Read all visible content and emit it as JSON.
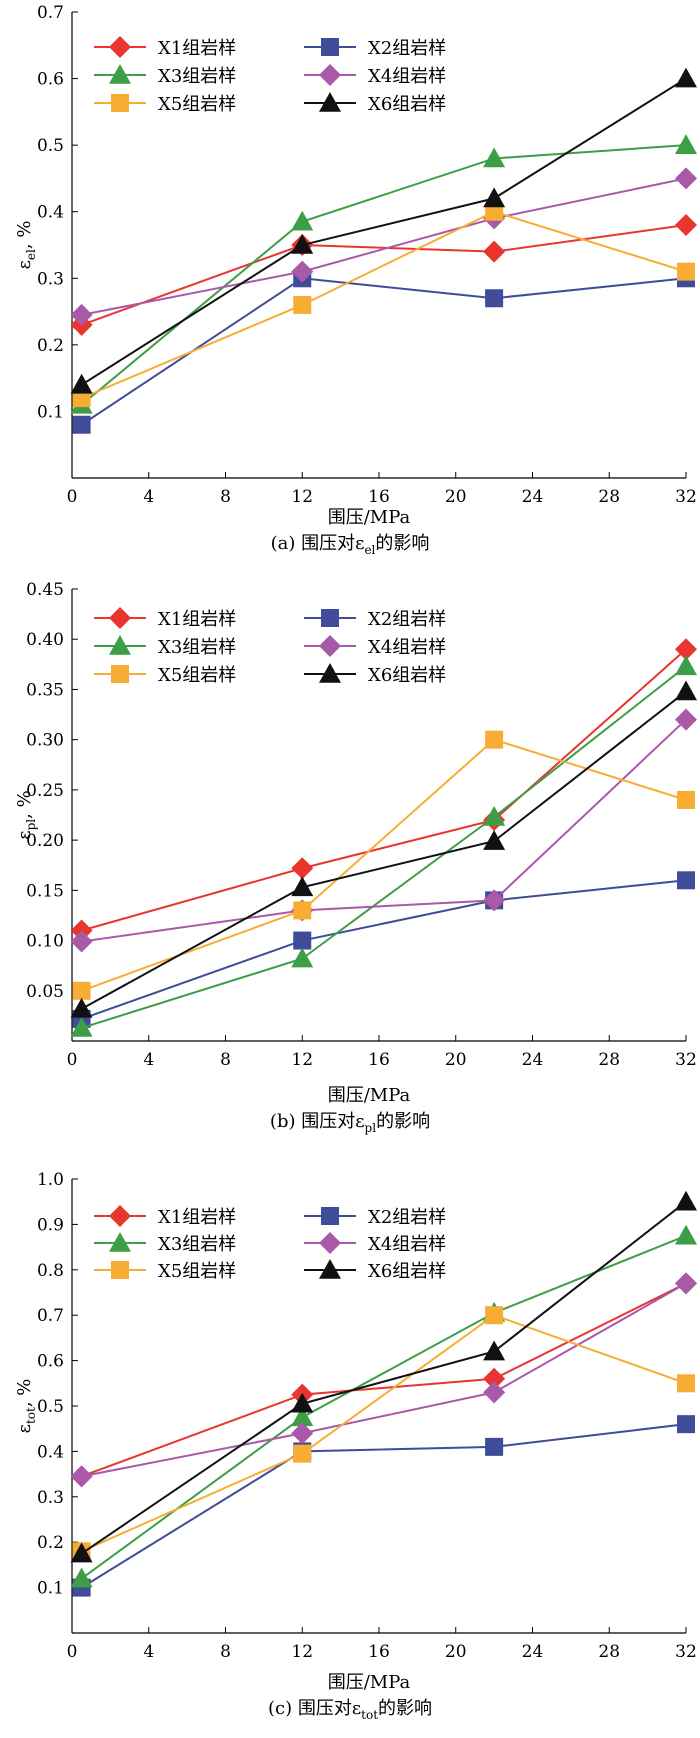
{
  "colors": {
    "X1": "#e8352f",
    "X2": "#3f4c99",
    "X3": "#3c9e46",
    "X4": "#a859a8",
    "X5": "#f7ac34",
    "X6": "#111111"
  },
  "chart_data": [
    {
      "type": "line",
      "panel": "a",
      "caption": {
        "prefix": "(a) 围压对ε",
        "sub": "el",
        "suffix": "的影响"
      },
      "xlabel": "围压/MPa",
      "ylabel": {
        "main": "ε",
        "sub": "el",
        "tail": ", %"
      },
      "xlim": [
        0,
        32
      ],
      "ylim": [
        0,
        0.7
      ],
      "xticks": [
        0,
        4,
        8,
        12,
        16,
        20,
        24,
        28,
        32
      ],
      "yticks": [
        0.1,
        0.2,
        0.3,
        0.4,
        0.5,
        0.6,
        0.7
      ],
      "ytick_labels": [
        "0.1",
        "0.2",
        "0.3",
        "0.4",
        "0.5",
        "0.6",
        "0.7"
      ],
      "x": [
        0.5,
        12,
        22,
        32
      ],
      "series": [
        {
          "name": "X1组岩样",
          "key": "X1",
          "marker": "diamond",
          "values": [
            0.23,
            0.35,
            0.34,
            0.38
          ]
        },
        {
          "name": "X2组岩样",
          "key": "X2",
          "marker": "square",
          "values": [
            0.08,
            0.3,
            0.27,
            0.3
          ]
        },
        {
          "name": "X3组岩样",
          "key": "X3",
          "marker": "triangle",
          "values": [
            0.11,
            0.385,
            0.48,
            0.5
          ]
        },
        {
          "name": "X4组岩样",
          "key": "X4",
          "marker": "diamond",
          "values": [
            0.245,
            0.31,
            0.39,
            0.45
          ]
        },
        {
          "name": "X5组岩样",
          "key": "X5",
          "marker": "square",
          "values": [
            0.12,
            0.26,
            0.4,
            0.31
          ]
        },
        {
          "name": "X6组岩样",
          "key": "X6",
          "marker": "triangle",
          "values": [
            0.14,
            0.35,
            0.42,
            0.6
          ]
        }
      ]
    },
    {
      "type": "line",
      "panel": "b",
      "caption": {
        "prefix": "(b) 围压对ε",
        "sub": "pl",
        "suffix": "的影响"
      },
      "xlabel": "围压/MPa",
      "ylabel": {
        "main": "ε",
        "sub": "pl",
        "tail": ", %"
      },
      "xlim": [
        0,
        32
      ],
      "ylim": [
        0,
        0.45
      ],
      "xticks": [
        0,
        4,
        8,
        12,
        16,
        20,
        24,
        28,
        32
      ],
      "yticks": [
        0.05,
        0.1,
        0.15,
        0.2,
        0.25,
        0.3,
        0.35,
        0.4,
        0.45
      ],
      "ytick_labels": [
        "0.05",
        "0.10",
        "0.15",
        "0.20",
        "0.25",
        "0.30",
        "0.35",
        "0.40",
        "0.45"
      ],
      "x": [
        0.5,
        12,
        22,
        32
      ],
      "series": [
        {
          "name": "X1组岩样",
          "key": "X1",
          "marker": "diamond",
          "values": [
            0.11,
            0.172,
            0.22,
            0.39
          ]
        },
        {
          "name": "X2组岩样",
          "key": "X2",
          "marker": "square",
          "values": [
            0.022,
            0.1,
            0.14,
            0.16
          ]
        },
        {
          "name": "X3组岩样",
          "key": "X3",
          "marker": "triangle",
          "values": [
            0.013,
            0.082,
            0.223,
            0.373
          ]
        },
        {
          "name": "X4组岩样",
          "key": "X4",
          "marker": "diamond",
          "values": [
            0.099,
            0.13,
            0.14,
            0.32
          ]
        },
        {
          "name": "X5组岩样",
          "key": "X5",
          "marker": "square",
          "values": [
            0.05,
            0.13,
            0.3,
            0.24
          ]
        },
        {
          "name": "X6组岩样",
          "key": "X6",
          "marker": "triangle",
          "values": [
            0.032,
            0.153,
            0.199,
            0.348
          ]
        }
      ]
    },
    {
      "type": "line",
      "panel": "c",
      "caption": {
        "prefix": "(c) 围压对ε",
        "sub": "tot",
        "suffix": "的影响"
      },
      "xlabel": "围压/MPa",
      "ylabel": {
        "main": "ε",
        "sub": "tot",
        "tail": ", %"
      },
      "xlim": [
        0,
        32
      ],
      "ylim": [
        0,
        1.0
      ],
      "xticks": [
        0,
        4,
        8,
        12,
        16,
        20,
        24,
        28,
        32
      ],
      "yticks": [
        0.1,
        0.2,
        0.3,
        0.4,
        0.5,
        0.6,
        0.7,
        0.8,
        0.9,
        1.0
      ],
      "ytick_labels": [
        "0.1",
        "0.2",
        "0.3",
        "0.4",
        "0.5",
        "0.6",
        "0.7",
        "0.8",
        "0.9",
        "1.0"
      ],
      "x": [
        0.5,
        12,
        22,
        32
      ],
      "series": [
        {
          "name": "X1组岩样",
          "key": "X1",
          "marker": "diamond",
          "values": [
            0.345,
            0.525,
            0.56,
            0.77
          ]
        },
        {
          "name": "X2组岩样",
          "key": "X2",
          "marker": "square",
          "values": [
            0.1,
            0.4,
            0.41,
            0.46
          ]
        },
        {
          "name": "X3组岩样",
          "key": "X3",
          "marker": "triangle",
          "values": [
            0.12,
            0.475,
            0.705,
            0.875
          ]
        },
        {
          "name": "X4组岩样",
          "key": "X4",
          "marker": "diamond",
          "values": [
            0.345,
            0.44,
            0.53,
            0.77
          ]
        },
        {
          "name": "X5组岩样",
          "key": "X5",
          "marker": "square",
          "values": [
            0.18,
            0.395,
            0.7,
            0.55
          ]
        },
        {
          "name": "X6组岩样",
          "key": "X6",
          "marker": "triangle",
          "values": [
            0.175,
            0.505,
            0.62,
            0.95
          ]
        }
      ]
    }
  ]
}
